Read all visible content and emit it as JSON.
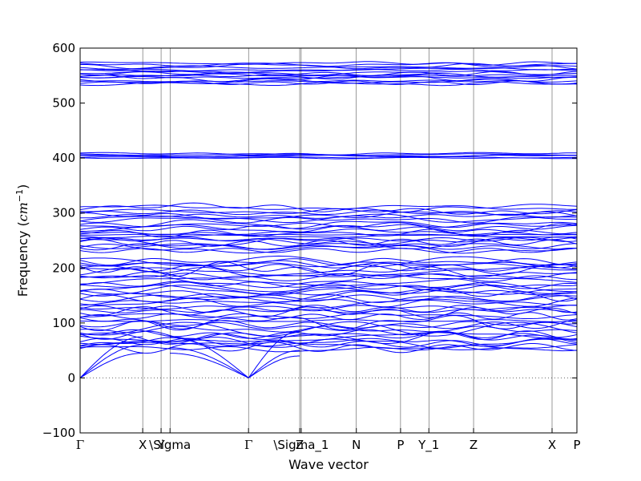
{
  "chart_data": {
    "type": "line",
    "title": "",
    "xlabel": "Wave vector",
    "ylabel_text": "Frequency (",
    "ylabel_unit_base": "cm",
    "ylabel_unit_exp": "−1",
    "ylabel_close": ")",
    "ylim": [
      -100,
      600
    ],
    "xlim": [
      0,
      1
    ],
    "yticks": [
      -100,
      0,
      100,
      200,
      300,
      400,
      500,
      600
    ],
    "ytick_labels": [
      "−100",
      "0",
      "100",
      "200",
      "300",
      "400",
      "500",
      "600"
    ],
    "high_symmetry_points": [
      {
        "x": 0.0,
        "label": "Γ"
      },
      {
        "x": 0.126,
        "label": "X"
      },
      {
        "x": 0.163,
        "label": "Y"
      },
      {
        "x": 0.181,
        "label": "\\Sigma"
      },
      {
        "x": 0.339,
        "label": "Γ"
      },
      {
        "x": 0.442,
        "label": "Z"
      },
      {
        "x": 0.445,
        "label": "\\Sigma_1"
      },
      {
        "x": 0.556,
        "label": "N"
      },
      {
        "x": 0.645,
        "label": "P"
      },
      {
        "x": 0.702,
        "label": "Y_1"
      },
      {
        "x": 0.792,
        "label": "Z"
      },
      {
        "x": 0.95,
        "label": "X"
      },
      {
        "x": 1.0,
        "label": "P"
      }
    ],
    "zero_line": 0,
    "line_color": "#0000ff",
    "grid": false,
    "band_groups": [
      {
        "name": "high",
        "base_levels": [
          535,
          540,
          545,
          550,
          555,
          560,
          565,
          570
        ]
      },
      {
        "name": "mid-high",
        "base_levels": [
          400,
          404,
          408
        ]
      },
      {
        "name": "mid",
        "base_levels": [
          232,
          240,
          246,
          252,
          258,
          265,
          272,
          280,
          288,
          296,
          303,
          310
        ]
      },
      {
        "name": "low",
        "base_levels": [
          55,
          60,
          66,
          72,
          80,
          88,
          96,
          104,
          112,
          120,
          128,
          136,
          144,
          152,
          160,
          168,
          176,
          184,
          192,
          200,
          207,
          212
        ]
      }
    ],
    "acoustic_branches": [
      {
        "segment_x": [
          0.0,
          0.126
        ],
        "y": [
          0,
          45
        ]
      },
      {
        "segment_x": [
          0.0,
          0.126
        ],
        "y": [
          0,
          60
        ]
      },
      {
        "segment_x": [
          0.0,
          0.126
        ],
        "y": [
          0,
          75
        ]
      },
      {
        "segment_x": [
          0.181,
          0.339
        ],
        "y": [
          45,
          0
        ]
      },
      {
        "segment_x": [
          0.181,
          0.339
        ],
        "y": [
          75,
          0
        ]
      },
      {
        "segment_x": [
          0.181,
          0.339
        ],
        "y": [
          55,
          0
        ]
      },
      {
        "segment_x": [
          0.339,
          0.442
        ],
        "y": [
          0,
          50
        ]
      },
      {
        "segment_x": [
          0.339,
          0.442
        ],
        "y": [
          0,
          85
        ]
      },
      {
        "segment_x": [
          0.339,
          0.442
        ],
        "y": [
          0,
          40
        ]
      }
    ]
  }
}
